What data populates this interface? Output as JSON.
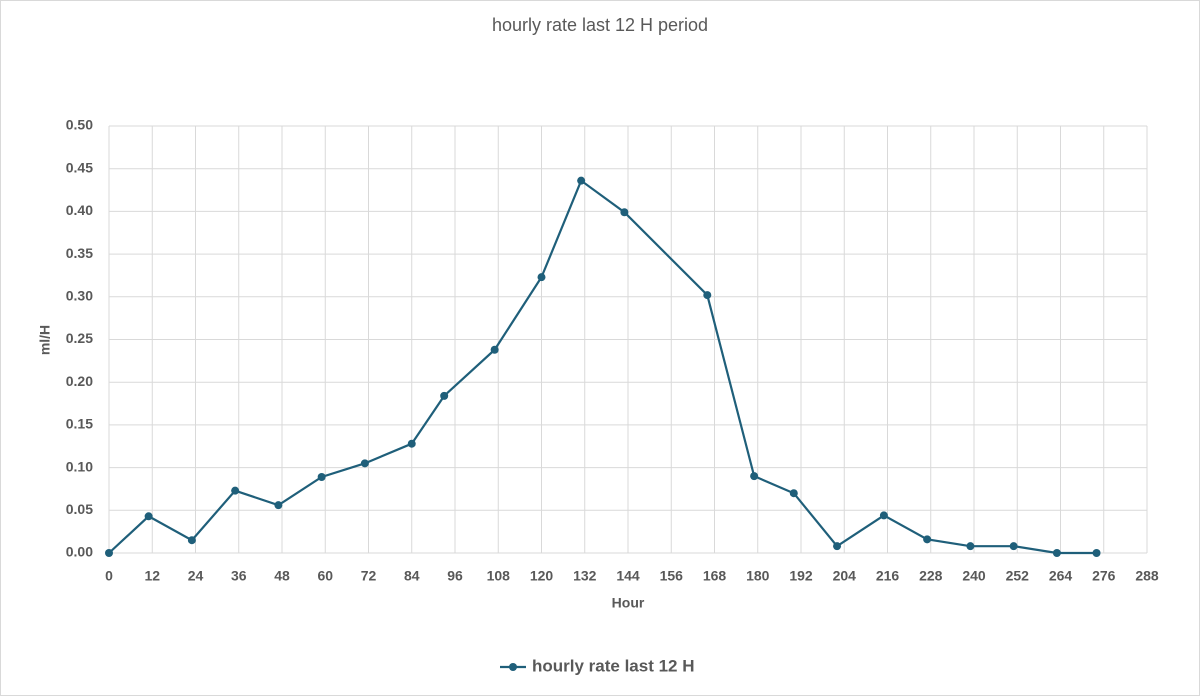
{
  "chart_data": {
    "type": "line",
    "title": "hourly rate last 12 H period",
    "x_label": "Hour",
    "y_label": "ml/H",
    "x": [
      0,
      11,
      23,
      35,
      47,
      59,
      71,
      84,
      93,
      107,
      120,
      131,
      143,
      166,
      179,
      190,
      202,
      215,
      227,
      239,
      251,
      263,
      274
    ],
    "series": [
      {
        "name": "hourly rate last 12 H",
        "color": "#1f5f7a",
        "values": [
          0,
          0.043,
          0.015,
          0.073,
          0.056,
          0.089,
          0.105,
          0.128,
          0.184,
          0.238,
          0.323,
          0.436,
          0.399,
          0.302,
          0.09,
          0.07,
          0.008,
          0.044,
          0.016,
          0.008,
          0.008,
          0,
          0
        ]
      }
    ],
    "xlim": [
      0,
      288
    ],
    "xticks": [
      0,
      12,
      24,
      36,
      48,
      60,
      72,
      84,
      96,
      108,
      120,
      132,
      144,
      156,
      168,
      180,
      192,
      204,
      216,
      228,
      240,
      252,
      264,
      276,
      288
    ],
    "ylim": [
      0,
      0.5
    ],
    "yticks": [
      {
        "value": 0,
        "label": "0.00"
      },
      {
        "value": 0.05,
        "label": "0.05"
      },
      {
        "value": 0.1,
        "label": "0.10"
      },
      {
        "value": 0.15,
        "label": "0.15"
      },
      {
        "value": 0.2,
        "label": "0.20"
      },
      {
        "value": 0.25,
        "label": "0.25"
      },
      {
        "value": 0.3,
        "label": "0.30"
      },
      {
        "value": 0.35,
        "label": "0.35"
      },
      {
        "value": 0.4,
        "label": "0.40"
      },
      {
        "value": 0.45,
        "label": "0.45"
      },
      {
        "value": 0.5,
        "label": "0.50"
      }
    ],
    "grid": true,
    "legend": "bottom"
  }
}
